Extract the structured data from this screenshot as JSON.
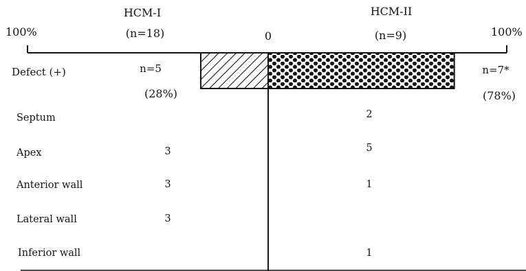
{
  "chart_data": {
    "type": "bar",
    "orientation": "horizontal-diverging",
    "groups": [
      {
        "label": "HCM-I",
        "n_label": "(n=18)"
      },
      {
        "label": "HCM-II",
        "n_label": "(n=9)"
      }
    ],
    "axis": {
      "left_label": "100%",
      "center_label": "0",
      "right_label": "100%",
      "range_pct": [
        -100,
        100
      ]
    },
    "defect": {
      "label": "Defect (+)",
      "hcm1": {
        "n_text": "n=5",
        "pct_text": "(28%)",
        "value_pct": 28,
        "fill": "hatch"
      },
      "hcm2": {
        "n_text": "n=7*",
        "pct_text": "(78%)",
        "value_pct": 78,
        "fill": "dots"
      }
    },
    "rows": [
      {
        "label": "Septum",
        "hcm1": "",
        "hcm2": "2"
      },
      {
        "label": "Apex",
        "hcm1": "3",
        "hcm2": "5"
      },
      {
        "label": "Anterior wall",
        "hcm1": "3",
        "hcm2": "1"
      },
      {
        "label": "Lateral wall",
        "hcm1": "3",
        "hcm2": ""
      },
      {
        "label": "Inferior wall",
        "hcm1": "",
        "hcm2": "1"
      }
    ]
  }
}
